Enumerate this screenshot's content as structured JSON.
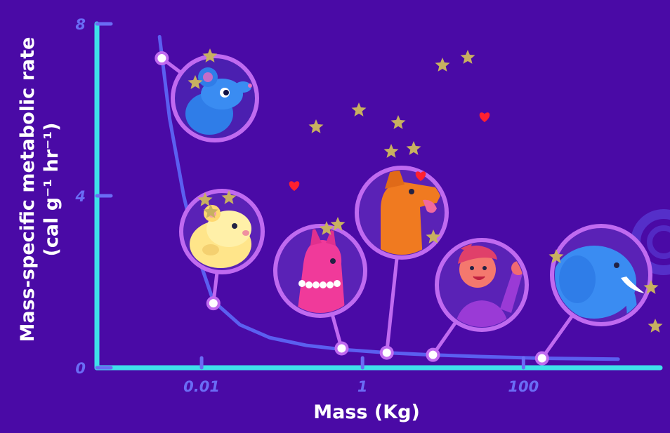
{
  "chart_data": {
    "type": "scatter",
    "xlabel": "Mass (Kg)",
    "ylabel": {
      "line1": "Mass-specific metabolic rate",
      "line2": "(cal g⁻¹ hr⁻¹)"
    },
    "x_scale": "log",
    "xlim": [
      0.0005,
      5000
    ],
    "ylim": [
      0,
      8
    ],
    "x_ticks": [
      {
        "value": 0.01,
        "label": "0.01"
      },
      {
        "value": 1,
        "label": "1"
      },
      {
        "value": 100,
        "label": "100"
      }
    ],
    "y_ticks": [
      {
        "value": 0,
        "label": "0"
      },
      {
        "value": 4,
        "label": "4"
      },
      {
        "value": 8,
        "label": "8"
      }
    ],
    "grid": false,
    "points": [
      {
        "animal": "mouse",
        "x": 0.0032,
        "y": 7.2
      },
      {
        "animal": "hamster",
        "x": 0.014,
        "y": 1.5
      },
      {
        "animal": "llama",
        "x": 0.55,
        "y": 0.45
      },
      {
        "animal": "dog",
        "x": 2.0,
        "y": 0.35
      },
      {
        "animal": "human",
        "x": 7.5,
        "y": 0.3
      },
      {
        "animal": "elephant",
        "x": 170,
        "y": 0.22
      }
    ],
    "curve": [
      [
        0.003,
        7.7
      ],
      [
        0.004,
        5.8
      ],
      [
        0.006,
        4.0
      ],
      [
        0.009,
        2.6
      ],
      [
        0.014,
        1.55
      ],
      [
        0.03,
        1.0
      ],
      [
        0.07,
        0.7
      ],
      [
        0.2,
        0.52
      ],
      [
        0.6,
        0.42
      ],
      [
        2,
        0.35
      ],
      [
        7,
        0.3
      ],
      [
        30,
        0.26
      ],
      [
        170,
        0.22
      ],
      [
        1500,
        0.2
      ]
    ],
    "colors": {
      "background": "#4a0aa6",
      "axis": "#3fe0ea",
      "tick": "#6a6cf5",
      "curve": "#5b5ff0",
      "marker_ring": "#c06af0",
      "star": "#c8b060",
      "heart": "#ff2030"
    }
  }
}
